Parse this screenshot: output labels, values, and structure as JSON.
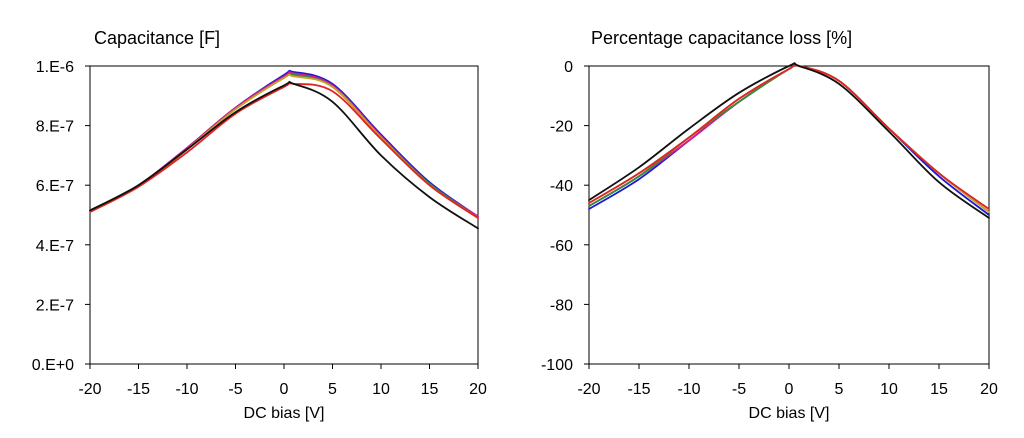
{
  "chart_data": [
    {
      "type": "line",
      "title": "Capacitance [F]",
      "xlabel": "DC bias [V]",
      "ylabel": "",
      "xlim": [
        -20,
        20
      ],
      "ylim": [
        0,
        1e-06
      ],
      "x_ticks": [
        "-20",
        "-15",
        "-10",
        "-5",
        "0",
        "5",
        "10",
        "15",
        "20"
      ],
      "y_ticks": [
        "0.E+0",
        "2.E-7",
        "4.E-7",
        "6.E-7",
        "8.E-7",
        "1.E-6"
      ],
      "grid": false,
      "x": [
        -20,
        -15,
        -10,
        -5,
        0,
        1,
        5,
        10,
        15,
        20
      ],
      "series": [
        {
          "color": "#1a1ad6",
          "values": [
            5.15e-07,
            6e-07,
            7.25e-07,
            8.6e-07,
            9.7e-07,
            9.8e-07,
            9.4e-07,
            7.7e-07,
            6.1e-07,
            4.95e-07
          ]
        },
        {
          "color": "#d81b8c",
          "values": [
            5.15e-07,
            6e-07,
            7.25e-07,
            8.6e-07,
            9.65e-07,
            9.75e-07,
            9.35e-07,
            7.65e-07,
            6.05e-07,
            4.95e-07
          ]
        },
        {
          "color": "#2f8f3a",
          "values": [
            5.15e-07,
            6e-07,
            7.2e-07,
            8.55e-07,
            9.6e-07,
            9.7e-07,
            9.3e-07,
            7.6e-07,
            6.05e-07,
            4.9e-07
          ]
        },
        {
          "color": "#c9a227",
          "values": [
            5.1e-07,
            5.95e-07,
            7.2e-07,
            8.55e-07,
            9.6e-07,
            9.65e-07,
            9.3e-07,
            7.6e-07,
            6e-07,
            4.9e-07
          ]
        },
        {
          "color": "#e02424",
          "values": [
            5.1e-07,
            5.95e-07,
            7.1e-07,
            8.4e-07,
            9.3e-07,
            9.4e-07,
            9.15e-07,
            7.55e-07,
            6e-07,
            4.9e-07
          ]
        },
        {
          "color": "#111111",
          "values": [
            5.15e-07,
            6e-07,
            7.2e-07,
            8.45e-07,
            9.35e-07,
            9.4e-07,
            8.8e-07,
            7e-07,
            5.6e-07,
            4.55e-07
          ]
        }
      ]
    },
    {
      "type": "line",
      "title": "Percentage capacitance loss [%]",
      "xlabel": "DC bias [V]",
      "ylabel": "",
      "xlim": [
        -20,
        20
      ],
      "ylim": [
        -100,
        0
      ],
      "x_ticks": [
        "-20",
        "-15",
        "-10",
        "-5",
        "0",
        "5",
        "10",
        "15",
        "20"
      ],
      "y_ticks": [
        "-100",
        "-80",
        "-60",
        "-40",
        "-20",
        "0"
      ],
      "grid": false,
      "x": [
        -20,
        -15,
        -10,
        -5,
        0,
        1,
        5,
        10,
        15,
        20
      ],
      "series": [
        {
          "color": "#1a1ad6",
          "values": [
            -48,
            -38,
            -25,
            -12,
            -1,
            0,
            -5,
            -21,
            -37,
            -50
          ]
        },
        {
          "color": "#d81b8c",
          "values": [
            -47,
            -37,
            -25,
            -12,
            -1,
            0,
            -5,
            -21,
            -36,
            -49
          ]
        },
        {
          "color": "#2f8f3a",
          "values": [
            -47,
            -37,
            -24,
            -12,
            -1,
            0,
            -5,
            -21,
            -36,
            -49
          ]
        },
        {
          "color": "#c9a227",
          "values": [
            -46,
            -36,
            -24,
            -11,
            -1,
            0,
            -5,
            -21,
            -36,
            -49
          ]
        },
        {
          "color": "#e02424",
          "values": [
            -46,
            -36,
            -24,
            -11,
            -1,
            0,
            -5,
            -21,
            -36,
            -48
          ]
        },
        {
          "color": "#111111",
          "values": [
            -45,
            -34,
            -21,
            -9,
            0,
            0,
            -6,
            -22,
            -39,
            -51
          ]
        }
      ]
    }
  ]
}
